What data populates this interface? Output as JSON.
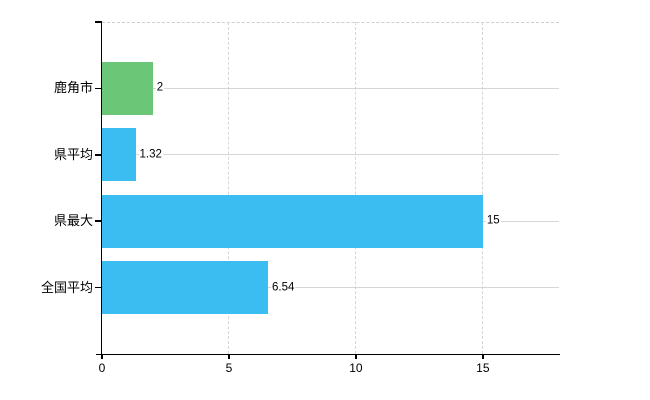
{
  "chart": {
    "background": "#ffffff"
  },
  "chart_data": {
    "type": "bar",
    "orientation": "horizontal",
    "title": "",
    "categories": [
      "鹿角市",
      "県平均",
      "県最大",
      "全国平均"
    ],
    "values": [
      2,
      1.32,
      15,
      6.54
    ],
    "value_labels": [
      "2",
      "1.32",
      "15",
      "6.54"
    ],
    "bar_colors": [
      "#6cc678",
      "#3bbdf1",
      "#3bbdf1",
      "#3bbdf1"
    ],
    "colors": {
      "highlight_green": "#6cc678",
      "default_blue": "#3bbdf1",
      "h_grid": "#d5d8d0",
      "v_grid": "#d6d6d6",
      "plot_border_dashed": "#cfcfcf",
      "axis": "#000000",
      "text": "#000000"
    },
    "xlim": [
      0,
      18
    ],
    "x_ticks": [
      0,
      5,
      10,
      15
    ],
    "x_tick_labels": [
      "0",
      "5",
      "10",
      "15"
    ],
    "grid": true,
    "legend": false
  }
}
